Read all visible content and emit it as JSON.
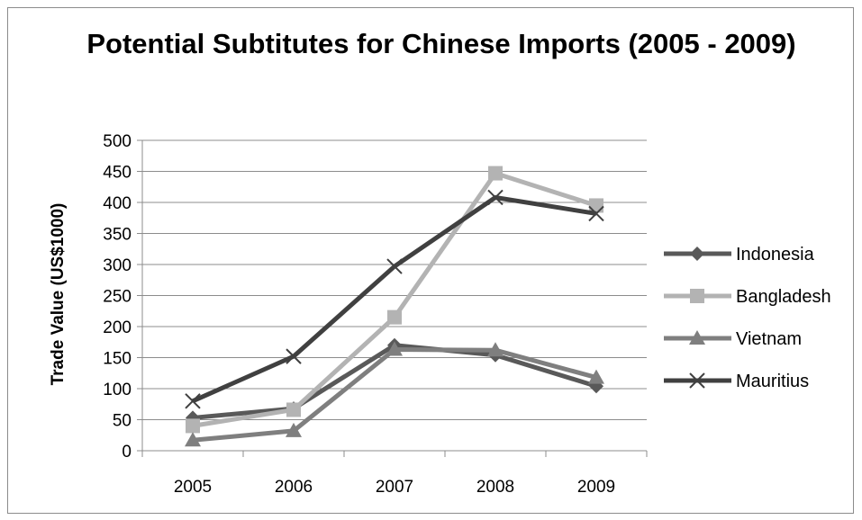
{
  "chart_data": {
    "type": "line",
    "title": "Potential Subtitutes for Chinese Imports (2005 - 2009)",
    "xlabel": "",
    "ylabel": "Trade Value (US$1000)",
    "categories": [
      "2005",
      "2006",
      "2007",
      "2008",
      "2009"
    ],
    "ylim": [
      0,
      500
    ],
    "yticks": [
      0,
      50,
      100,
      150,
      200,
      250,
      300,
      350,
      400,
      450,
      500
    ],
    "grid": true,
    "legend_position": "right",
    "series": [
      {
        "name": "Indonesia",
        "values": [
          53,
          68,
          170,
          154,
          104
        ],
        "color": "#595959",
        "marker": "diamond"
      },
      {
        "name": "Bangladesh",
        "values": [
          40,
          66,
          215,
          447,
          395
        ],
        "color": "#b3b3b3",
        "marker": "square"
      },
      {
        "name": "Vietnam",
        "values": [
          17,
          32,
          163,
          162,
          118
        ],
        "color": "#7f7f7f",
        "marker": "triangle"
      },
      {
        "name": "Mauritius",
        "values": [
          80,
          152,
          297,
          408,
          382
        ],
        "color": "#404040",
        "marker": "x"
      }
    ]
  }
}
